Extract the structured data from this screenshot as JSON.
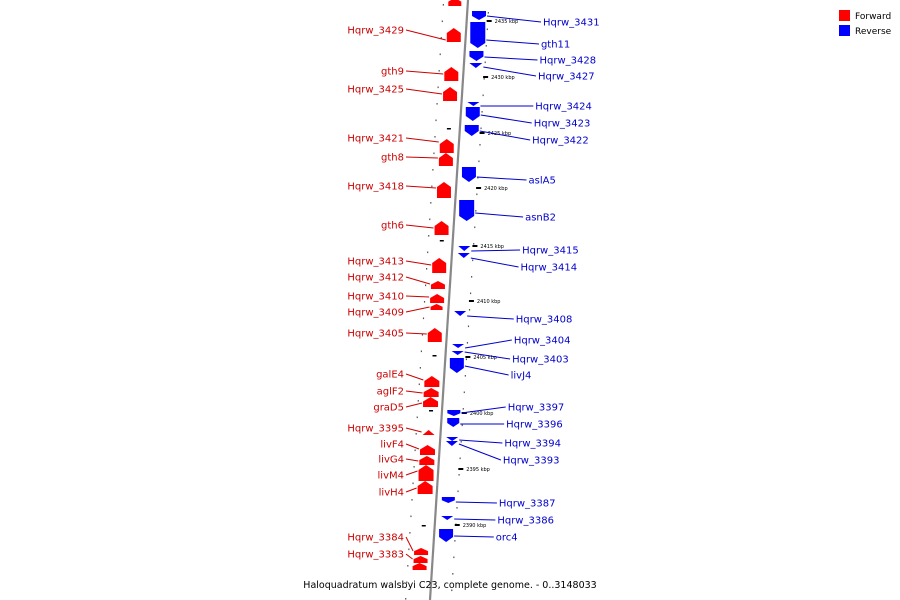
{
  "caption": "Haloquadratum walsbyi C23, complete genome. - 0..3148033",
  "legend": [
    {
      "label": "Forward",
      "color": "#ff0000"
    },
    {
      "label": "Reverse",
      "color": "#0000ff"
    }
  ],
  "colors": {
    "forward": "#ff0000",
    "reverse": "#0000ff",
    "forward_label": "#cc0000",
    "reverse_label": "#0000cc",
    "axis": "#888888"
  },
  "scale_ticks": [
    "2435 kbp",
    "2430 kbp",
    "2425 kbp",
    "2420 kbp",
    "2415 kbp",
    "2410 kbp",
    "2405 kbp",
    "2400 kbp",
    "2395 kbp",
    "2390 kbp"
  ],
  "forward_genes": [
    "Hqrw_3429",
    "gth9",
    "Hqrw_3425",
    "Hqrw_3421",
    "gth8",
    "Hqrw_3418",
    "gth6",
    "Hqrw_3413",
    "Hqrw_3412",
    "Hqrw_3410",
    "Hqrw_3409",
    "Hqrw_3405",
    "galE4",
    "aglF2",
    "graD5",
    "Hqrw_3395",
    "livF4",
    "livG4",
    "livM4",
    "livH4",
    "Hqrw_3384",
    "Hqrw_3383"
  ],
  "reverse_genes": [
    "Hqrw_3431",
    "gth11",
    "Hqrw_3428",
    "Hqrw_3427",
    "Hqrw_3424",
    "Hqrw_3423",
    "Hqrw_3422",
    "aslA5",
    "asnB2",
    "Hqrw_3415",
    "Hqrw_3414",
    "Hqrw_3408",
    "Hqrw_3404",
    "Hqrw_3403",
    "livJ4",
    "Hqrw_3397",
    "Hqrw_3396",
    "Hqrw_3394",
    "Hqrw_3393",
    "Hqrw_3387",
    "Hqrw_3386",
    "orc4"
  ]
}
